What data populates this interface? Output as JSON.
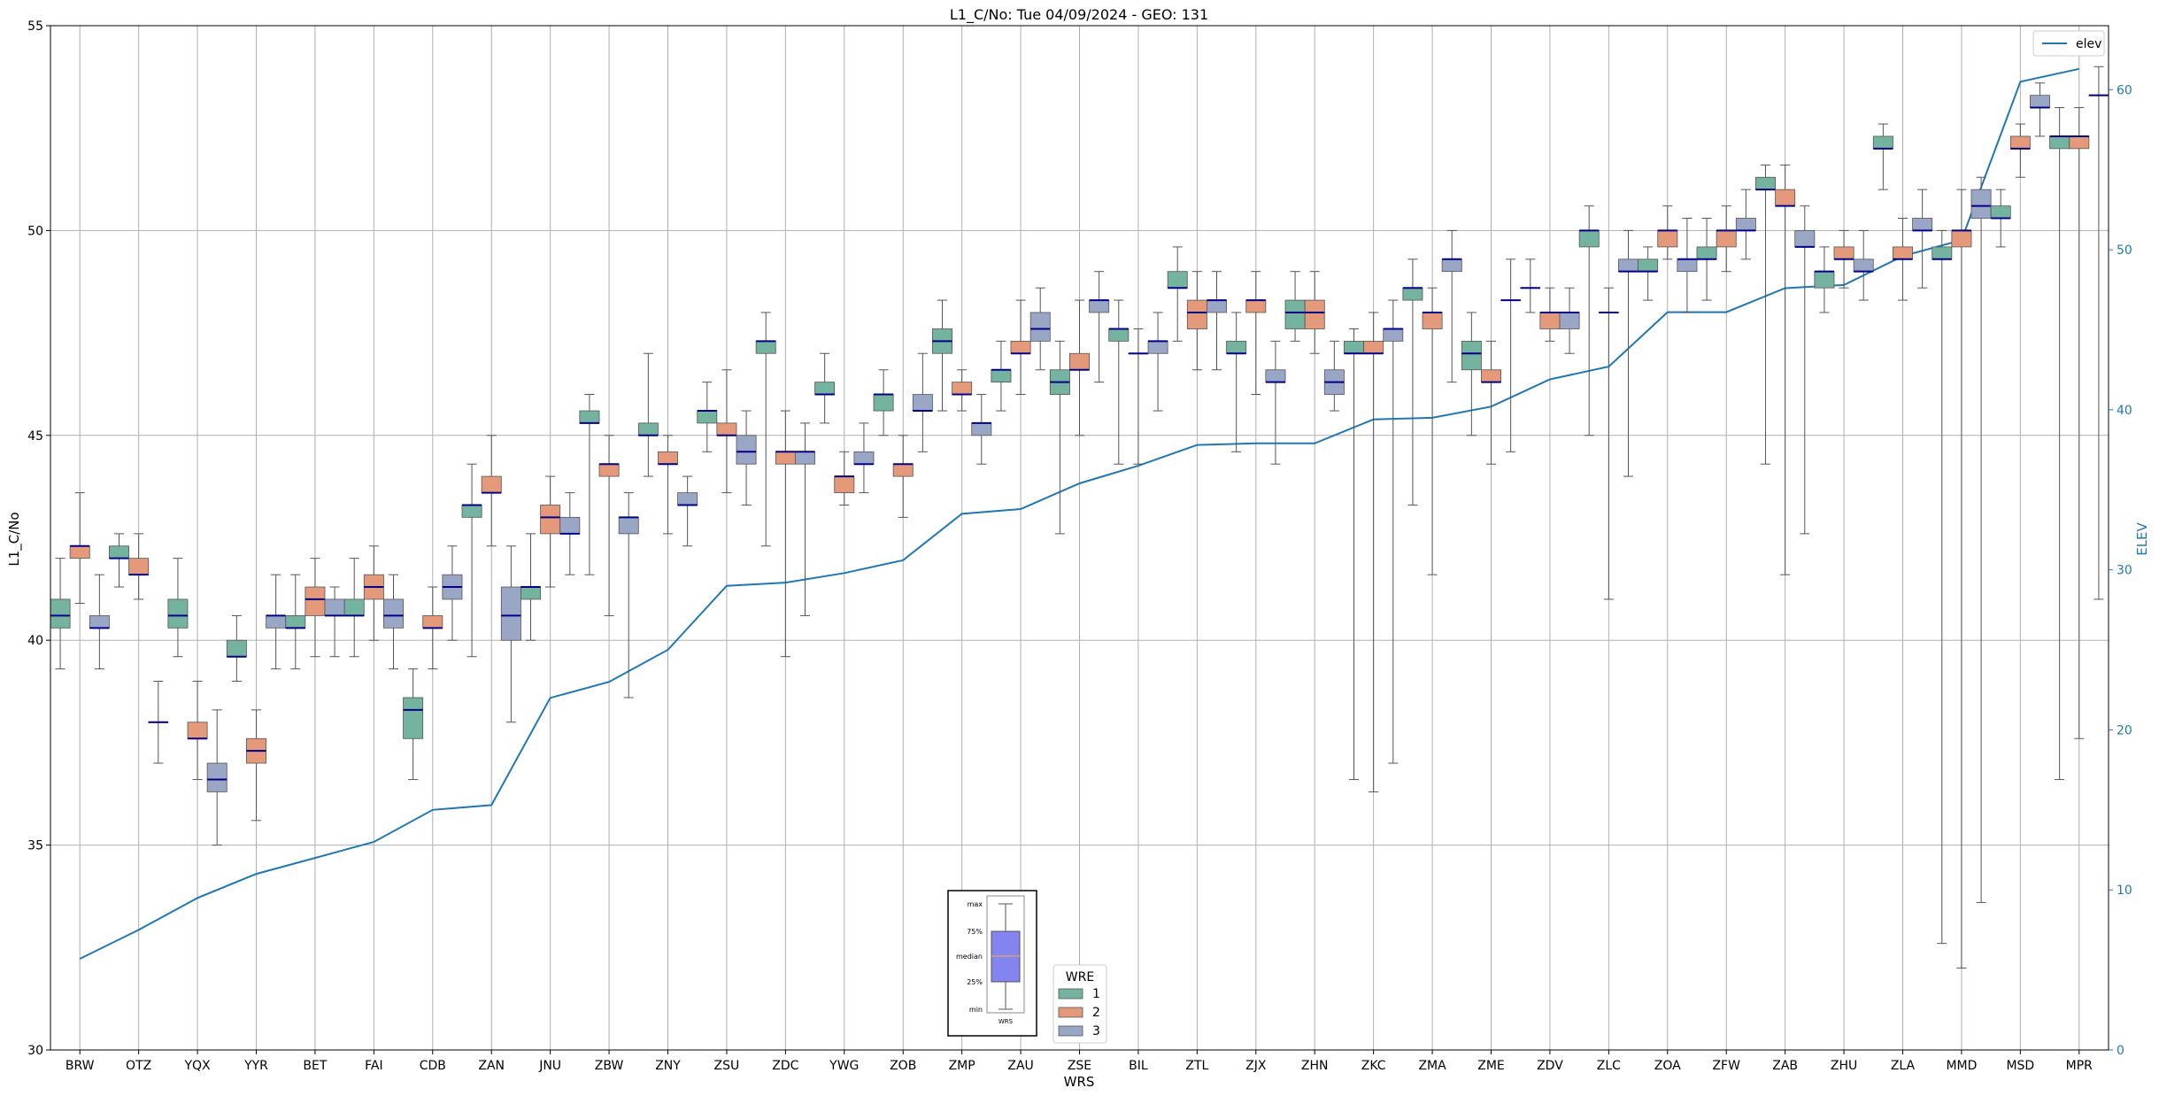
{
  "chart_data": {
    "type": "box",
    "title": "L1_C/No: Tue 04/09/2024 - GEO: 131",
    "xlabel": "WRS",
    "ylabel": "L1_C/No",
    "y2label": "ELEV",
    "ylim": [
      30,
      55
    ],
    "y2lim": [
      0,
      64
    ],
    "yticks": [
      30,
      35,
      40,
      45,
      50,
      55
    ],
    "y2ticks": [
      0,
      10,
      20,
      30,
      40,
      50,
      60
    ],
    "grid": true,
    "categories": [
      "BRW",
      "OTZ",
      "YQX",
      "YYR",
      "BET",
      "FAI",
      "CDB",
      "ZAN",
      "JNU",
      "ZBW",
      "ZNY",
      "ZSU",
      "ZDC",
      "YWG",
      "ZOB",
      "ZMP",
      "ZAU",
      "ZSE",
      "BIL",
      "ZTL",
      "ZJX",
      "ZHN",
      "ZKC",
      "ZMA",
      "ZME",
      "ZDV",
      "ZLC",
      "ZOA",
      "ZFW",
      "ZAB",
      "ZHU",
      "ZLA",
      "MMD",
      "MSD",
      "MPR"
    ],
    "wre_legend": {
      "title": "WRE",
      "items": [
        {
          "label": "1",
          "color": "#73b3a0"
        },
        {
          "label": "2",
          "color": "#e3997a"
        },
        {
          "label": "3",
          "color": "#9aa6c6"
        }
      ]
    },
    "line_legend": {
      "label": "elev",
      "color": "#1f77b4",
      "placement": "top-right"
    },
    "key_box": {
      "labels": [
        "max",
        "75%",
        "median",
        "25%",
        "min"
      ],
      "x_label": "WRS"
    },
    "elev": [
      5.7,
      7.5,
      9.5,
      11.0,
      12.0,
      13.0,
      15.0,
      15.3,
      22.0,
      23.0,
      25.0,
      29.0,
      29.2,
      29.8,
      30.6,
      33.5,
      33.8,
      35.4,
      36.5,
      37.8,
      37.9,
      37.9,
      39.4,
      39.5,
      40.2,
      41.9,
      42.7,
      46.1,
      46.1,
      47.6,
      47.8,
      49.6,
      50.6,
      60.5,
      61.3
    ],
    "boxes": [
      {
        "wrs": "BRW",
        "wre": 1,
        "min": 39.3,
        "q1": 40.3,
        "median": 40.6,
        "q3": 41.0,
        "max": 42.0
      },
      {
        "wrs": "BRW",
        "wre": 2,
        "min": 40.9,
        "q1": 42.0,
        "median": 42.3,
        "q3": 42.3,
        "max": 43.6
      },
      {
        "wrs": "BRW",
        "wre": 3,
        "min": 39.3,
        "q1": 40.3,
        "median": 40.3,
        "q3": 40.6,
        "max": 41.6
      },
      {
        "wrs": "OTZ",
        "wre": 1,
        "min": 41.3,
        "q1": 42.0,
        "median": 42.0,
        "q3": 42.3,
        "max": 42.6
      },
      {
        "wrs": "OTZ",
        "wre": 2,
        "min": 41.0,
        "q1": 41.6,
        "median": 41.6,
        "q3": 42.0,
        "max": 42.6
      },
      {
        "wrs": "OTZ",
        "wre": 3,
        "min": 37.0,
        "q1": 38.0,
        "median": 38.0,
        "q3": 38.0,
        "max": 39.0
      },
      {
        "wrs": "YQX",
        "wre": 1,
        "min": 39.6,
        "q1": 40.3,
        "median": 40.6,
        "q3": 41.0,
        "max": 42.0
      },
      {
        "wrs": "YQX",
        "wre": 2,
        "min": 36.6,
        "q1": 37.6,
        "median": 37.6,
        "q3": 38.0,
        "max": 39.0
      },
      {
        "wrs": "YQX",
        "wre": 3,
        "min": 35.0,
        "q1": 36.3,
        "median": 36.6,
        "q3": 37.0,
        "max": 38.3
      },
      {
        "wrs": "YYR",
        "wre": 1,
        "min": 39.0,
        "q1": 39.6,
        "median": 39.6,
        "q3": 40.0,
        "max": 40.6
      },
      {
        "wrs": "YYR",
        "wre": 2,
        "min": 35.6,
        "q1": 37.0,
        "median": 37.3,
        "q3": 37.6,
        "max": 38.3
      },
      {
        "wrs": "YYR",
        "wre": 3,
        "min": 39.3,
        "q1": 40.3,
        "median": 40.6,
        "q3": 40.6,
        "max": 41.6
      },
      {
        "wrs": "BET",
        "wre": 1,
        "min": 39.3,
        "q1": 40.3,
        "median": 40.3,
        "q3": 40.6,
        "max": 41.6
      },
      {
        "wrs": "BET",
        "wre": 2,
        "min": 39.6,
        "q1": 40.6,
        "median": 41.0,
        "q3": 41.3,
        "max": 42.0
      },
      {
        "wrs": "BET",
        "wre": 3,
        "min": 39.6,
        "q1": 40.6,
        "median": 40.6,
        "q3": 41.0,
        "max": 41.3
      },
      {
        "wrs": "FAI",
        "wre": 1,
        "min": 39.6,
        "q1": 40.6,
        "median": 40.6,
        "q3": 41.0,
        "max": 42.0
      },
      {
        "wrs": "FAI",
        "wre": 2,
        "min": 40.0,
        "q1": 41.0,
        "median": 41.3,
        "q3": 41.6,
        "max": 42.3
      },
      {
        "wrs": "FAI",
        "wre": 3,
        "min": 39.3,
        "q1": 40.3,
        "median": 40.6,
        "q3": 41.0,
        "max": 41.6
      },
      {
        "wrs": "CDB",
        "wre": 1,
        "min": 36.6,
        "q1": 37.6,
        "median": 38.3,
        "q3": 38.6,
        "max": 39.3
      },
      {
        "wrs": "CDB",
        "wre": 2,
        "min": 39.3,
        "q1": 40.3,
        "median": 40.3,
        "q3": 40.6,
        "max": 41.3
      },
      {
        "wrs": "CDB",
        "wre": 3,
        "min": 40.0,
        "q1": 41.0,
        "median": 41.3,
        "q3": 41.6,
        "max": 42.3
      },
      {
        "wrs": "ZAN",
        "wre": 1,
        "min": 39.6,
        "q1": 43.0,
        "median": 43.3,
        "q3": 43.3,
        "max": 44.3
      },
      {
        "wrs": "ZAN",
        "wre": 2,
        "min": 42.3,
        "q1": 43.6,
        "median": 43.6,
        "q3": 44.0,
        "max": 45.0
      },
      {
        "wrs": "ZAN",
        "wre": 3,
        "min": 38.0,
        "q1": 40.0,
        "median": 40.6,
        "q3": 41.3,
        "max": 42.3
      },
      {
        "wrs": "JNU",
        "wre": 1,
        "min": 40.0,
        "q1": 41.0,
        "median": 41.3,
        "q3": 41.3,
        "max": 42.6
      },
      {
        "wrs": "JNU",
        "wre": 2,
        "min": 41.3,
        "q1": 42.6,
        "median": 43.0,
        "q3": 43.3,
        "max": 44.0
      },
      {
        "wrs": "JNU",
        "wre": 3,
        "min": 41.6,
        "q1": 42.6,
        "median": 42.6,
        "q3": 43.0,
        "max": 43.6
      },
      {
        "wrs": "ZBW",
        "wre": 1,
        "min": 41.6,
        "q1": 45.3,
        "median": 45.3,
        "q3": 45.6,
        "max": 46.0
      },
      {
        "wrs": "ZBW",
        "wre": 2,
        "min": 40.6,
        "q1": 44.0,
        "median": 44.3,
        "q3": 44.3,
        "max": 45.0
      },
      {
        "wrs": "ZBW",
        "wre": 3,
        "min": 38.6,
        "q1": 42.6,
        "median": 43.0,
        "q3": 43.0,
        "max": 43.6
      },
      {
        "wrs": "ZNY",
        "wre": 1,
        "min": 44.0,
        "q1": 45.0,
        "median": 45.0,
        "q3": 45.3,
        "max": 47.0
      },
      {
        "wrs": "ZNY",
        "wre": 2,
        "min": 42.6,
        "q1": 44.3,
        "median": 44.3,
        "q3": 44.6,
        "max": 45.0
      },
      {
        "wrs": "ZNY",
        "wre": 3,
        "min": 42.3,
        "q1": 43.3,
        "median": 43.3,
        "q3": 43.6,
        "max": 44.0
      },
      {
        "wrs": "ZSU",
        "wre": 1,
        "min": 44.6,
        "q1": 45.3,
        "median": 45.6,
        "q3": 45.6,
        "max": 46.3
      },
      {
        "wrs": "ZSU",
        "wre": 2,
        "min": 43.6,
        "q1": 45.0,
        "median": 45.0,
        "q3": 45.3,
        "max": 46.6
      },
      {
        "wrs": "ZSU",
        "wre": 3,
        "min": 43.3,
        "q1": 44.3,
        "median": 44.6,
        "q3": 45.0,
        "max": 45.6
      },
      {
        "wrs": "ZDC",
        "wre": 1,
        "min": 42.3,
        "q1": 47.0,
        "median": 47.3,
        "q3": 47.3,
        "max": 48.0
      },
      {
        "wrs": "ZDC",
        "wre": 2,
        "min": 39.6,
        "q1": 44.3,
        "median": 44.6,
        "q3": 44.6,
        "max": 45.6
      },
      {
        "wrs": "ZDC",
        "wre": 3,
        "min": 40.6,
        "q1": 44.3,
        "median": 44.6,
        "q3": 44.6,
        "max": 45.3
      },
      {
        "wrs": "YWG",
        "wre": 1,
        "min": 45.3,
        "q1": 46.0,
        "median": 46.0,
        "q3": 46.3,
        "max": 47.0
      },
      {
        "wrs": "YWG",
        "wre": 2,
        "min": 43.3,
        "q1": 43.6,
        "median": 44.0,
        "q3": 44.0,
        "max": 44.6
      },
      {
        "wrs": "YWG",
        "wre": 3,
        "min": 43.6,
        "q1": 44.3,
        "median": 44.3,
        "q3": 44.6,
        "max": 45.3
      },
      {
        "wrs": "ZOB",
        "wre": 1,
        "min": 45.0,
        "q1": 45.6,
        "median": 46.0,
        "q3": 46.0,
        "max": 46.6
      },
      {
        "wrs": "ZOB",
        "wre": 2,
        "min": 43.0,
        "q1": 44.0,
        "median": 44.3,
        "q3": 44.3,
        "max": 45.0
      },
      {
        "wrs": "ZOB",
        "wre": 3,
        "min": 44.6,
        "q1": 45.6,
        "median": 45.6,
        "q3": 46.0,
        "max": 47.0
      },
      {
        "wrs": "ZMP",
        "wre": 1,
        "min": 45.6,
        "q1": 47.0,
        "median": 47.3,
        "q3": 47.6,
        "max": 48.3
      },
      {
        "wrs": "ZMP",
        "wre": 2,
        "min": 45.6,
        "q1": 46.0,
        "median": 46.0,
        "q3": 46.3,
        "max": 46.6
      },
      {
        "wrs": "ZMP",
        "wre": 3,
        "min": 44.3,
        "q1": 45.0,
        "median": 45.3,
        "q3": 45.3,
        "max": 46.0
      },
      {
        "wrs": "ZAU",
        "wre": 1,
        "min": 45.6,
        "q1": 46.3,
        "median": 46.6,
        "q3": 46.6,
        "max": 47.3
      },
      {
        "wrs": "ZAU",
        "wre": 2,
        "min": 46.0,
        "q1": 47.0,
        "median": 47.0,
        "q3": 47.3,
        "max": 48.3
      },
      {
        "wrs": "ZAU",
        "wre": 3,
        "min": 46.6,
        "q1": 47.3,
        "median": 47.6,
        "q3": 48.0,
        "max": 48.6
      },
      {
        "wrs": "ZSE",
        "wre": 1,
        "min": 42.6,
        "q1": 46.0,
        "median": 46.3,
        "q3": 46.6,
        "max": 47.3
      },
      {
        "wrs": "ZSE",
        "wre": 2,
        "min": 45.0,
        "q1": 46.6,
        "median": 46.6,
        "q3": 47.0,
        "max": 48.3
      },
      {
        "wrs": "ZSE",
        "wre": 3,
        "min": 46.3,
        "q1": 48.0,
        "median": 48.3,
        "q3": 48.3,
        "max": 49.0
      },
      {
        "wrs": "BIL",
        "wre": 1,
        "min": 44.3,
        "q1": 47.3,
        "median": 47.6,
        "q3": 47.6,
        "max": 48.3
      },
      {
        "wrs": "BIL",
        "wre": 2,
        "min": 44.3,
        "q1": 47.0,
        "median": 47.0,
        "q3": 47.0,
        "max": 47.6
      },
      {
        "wrs": "BIL",
        "wre": 3,
        "min": 45.6,
        "q1": 47.0,
        "median": 47.3,
        "q3": 47.3,
        "max": 48.0
      },
      {
        "wrs": "ZTL",
        "wre": 1,
        "min": 47.3,
        "q1": 48.6,
        "median": 48.6,
        "q3": 49.0,
        "max": 49.6
      },
      {
        "wrs": "ZTL",
        "wre": 2,
        "min": 46.6,
        "q1": 47.6,
        "median": 48.0,
        "q3": 48.3,
        "max": 49.0
      },
      {
        "wrs": "ZTL",
        "wre": 3,
        "min": 46.6,
        "q1": 48.0,
        "median": 48.3,
        "q3": 48.3,
        "max": 49.0
      },
      {
        "wrs": "ZJX",
        "wre": 1,
        "min": 44.6,
        "q1": 47.0,
        "median": 47.0,
        "q3": 47.3,
        "max": 48.0
      },
      {
        "wrs": "ZJX",
        "wre": 2,
        "min": 46.0,
        "q1": 48.0,
        "median": 48.3,
        "q3": 48.3,
        "max": 49.0
      },
      {
        "wrs": "ZJX",
        "wre": 3,
        "min": 44.3,
        "q1": 46.3,
        "median": 46.3,
        "q3": 46.6,
        "max": 47.3
      },
      {
        "wrs": "ZHN",
        "wre": 1,
        "min": 47.3,
        "q1": 47.6,
        "median": 48.0,
        "q3": 48.3,
        "max": 49.0
      },
      {
        "wrs": "ZHN",
        "wre": 2,
        "min": 47.0,
        "q1": 47.6,
        "median": 48.0,
        "q3": 48.3,
        "max": 49.0
      },
      {
        "wrs": "ZHN",
        "wre": 3,
        "min": 45.6,
        "q1": 46.0,
        "median": 46.3,
        "q3": 46.6,
        "max": 47.3
      },
      {
        "wrs": "ZKC",
        "wre": 1,
        "min": 36.6,
        "q1": 47.0,
        "median": 47.0,
        "q3": 47.3,
        "max": 47.6
      },
      {
        "wrs": "ZKC",
        "wre": 2,
        "min": 36.3,
        "q1": 47.0,
        "median": 47.0,
        "q3": 47.3,
        "max": 48.0
      },
      {
        "wrs": "ZKC",
        "wre": 3,
        "min": 37.0,
        "q1": 47.3,
        "median": 47.6,
        "q3": 47.6,
        "max": 48.3
      },
      {
        "wrs": "ZMA",
        "wre": 1,
        "min": 43.3,
        "q1": 48.3,
        "median": 48.6,
        "q3": 48.6,
        "max": 49.3
      },
      {
        "wrs": "ZMA",
        "wre": 2,
        "min": 41.6,
        "q1": 47.6,
        "median": 48.0,
        "q3": 48.0,
        "max": 48.6
      },
      {
        "wrs": "ZMA",
        "wre": 3,
        "min": 46.3,
        "q1": 49.0,
        "median": 49.3,
        "q3": 49.3,
        "max": 50.0
      },
      {
        "wrs": "ZME",
        "wre": 1,
        "min": 45.0,
        "q1": 46.6,
        "median": 47.0,
        "q3": 47.3,
        "max": 48.0
      },
      {
        "wrs": "ZME",
        "wre": 2,
        "min": 44.3,
        "q1": 46.3,
        "median": 46.3,
        "q3": 46.6,
        "max": 47.3
      },
      {
        "wrs": "ZME",
        "wre": 3,
        "min": 44.6,
        "q1": 48.3,
        "median": 48.3,
        "q3": 48.3,
        "max": 49.3
      },
      {
        "wrs": "ZDV",
        "wre": 1,
        "min": 48.0,
        "q1": 48.6,
        "median": 48.6,
        "q3": 48.6,
        "max": 49.3
      },
      {
        "wrs": "ZDV",
        "wre": 2,
        "min": 47.3,
        "q1": 47.6,
        "median": 48.0,
        "q3": 48.0,
        "max": 48.6
      },
      {
        "wrs": "ZDV",
        "wre": 3,
        "min": 47.0,
        "q1": 47.6,
        "median": 48.0,
        "q3": 48.0,
        "max": 48.6
      },
      {
        "wrs": "ZLC",
        "wre": 1,
        "min": 45.0,
        "q1": 49.6,
        "median": 50.0,
        "q3": 50.0,
        "max": 50.6
      },
      {
        "wrs": "ZLC",
        "wre": 2,
        "min": 41.0,
        "q1": 48.0,
        "median": 48.0,
        "q3": 48.0,
        "max": 48.6
      },
      {
        "wrs": "ZLC",
        "wre": 3,
        "min": 44.0,
        "q1": 49.0,
        "median": 49.0,
        "q3": 49.3,
        "max": 50.0
      },
      {
        "wrs": "ZOA",
        "wre": 1,
        "min": 48.3,
        "q1": 49.0,
        "median": 49.0,
        "q3": 49.3,
        "max": 49.6
      },
      {
        "wrs": "ZOA",
        "wre": 2,
        "min": 49.3,
        "q1": 49.6,
        "median": 50.0,
        "q3": 50.0,
        "max": 50.6
      },
      {
        "wrs": "ZOA",
        "wre": 3,
        "min": 48.0,
        "q1": 49.0,
        "median": 49.3,
        "q3": 49.3,
        "max": 50.3
      },
      {
        "wrs": "ZFW",
        "wre": 1,
        "min": 48.3,
        "q1": 49.3,
        "median": 49.3,
        "q3": 49.6,
        "max": 50.3
      },
      {
        "wrs": "ZFW",
        "wre": 2,
        "min": 49.0,
        "q1": 49.6,
        "median": 50.0,
        "q3": 50.0,
        "max": 50.6
      },
      {
        "wrs": "ZFW",
        "wre": 3,
        "min": 49.3,
        "q1": 50.0,
        "median": 50.0,
        "q3": 50.3,
        "max": 51.0
      },
      {
        "wrs": "ZAB",
        "wre": 1,
        "min": 44.3,
        "q1": 51.0,
        "median": 51.0,
        "q3": 51.3,
        "max": 51.6
      },
      {
        "wrs": "ZAB",
        "wre": 2,
        "min": 41.6,
        "q1": 50.6,
        "median": 50.6,
        "q3": 51.0,
        "max": 51.6
      },
      {
        "wrs": "ZAB",
        "wre": 3,
        "min": 42.6,
        "q1": 49.6,
        "median": 49.6,
        "q3": 50.0,
        "max": 50.6
      },
      {
        "wrs": "ZHU",
        "wre": 1,
        "min": 48.0,
        "q1": 48.6,
        "median": 49.0,
        "q3": 49.0,
        "max": 49.6
      },
      {
        "wrs": "ZHU",
        "wre": 2,
        "min": 48.6,
        "q1": 49.3,
        "median": 49.3,
        "q3": 49.6,
        "max": 50.0
      },
      {
        "wrs": "ZHU",
        "wre": 3,
        "min": 48.3,
        "q1": 49.0,
        "median": 49.0,
        "q3": 49.3,
        "max": 50.0
      },
      {
        "wrs": "ZLA",
        "wre": 1,
        "min": 51.0,
        "q1": 52.0,
        "median": 52.0,
        "q3": 52.3,
        "max": 52.6
      },
      {
        "wrs": "ZLA",
        "wre": 2,
        "min": 48.3,
        "q1": 49.3,
        "median": 49.3,
        "q3": 49.6,
        "max": 50.3
      },
      {
        "wrs": "ZLA",
        "wre": 3,
        "min": 48.6,
        "q1": 50.0,
        "median": 50.0,
        "q3": 50.3,
        "max": 51.0
      },
      {
        "wrs": "MMD",
        "wre": 1,
        "min": 32.6,
        "q1": 49.3,
        "median": 49.3,
        "q3": 49.6,
        "max": 50.0
      },
      {
        "wrs": "MMD",
        "wre": 2,
        "min": 32.0,
        "q1": 49.6,
        "median": 50.0,
        "q3": 50.0,
        "max": 51.0
      },
      {
        "wrs": "MMD",
        "wre": 3,
        "min": 33.6,
        "q1": 50.3,
        "median": 50.6,
        "q3": 51.0,
        "max": 51.3
      },
      {
        "wrs": "MSD",
        "wre": 1,
        "min": 49.6,
        "q1": 50.3,
        "median": 50.3,
        "q3": 50.6,
        "max": 51.0
      },
      {
        "wrs": "MSD",
        "wre": 2,
        "min": 51.3,
        "q1": 52.0,
        "median": 52.0,
        "q3": 52.3,
        "max": 52.6
      },
      {
        "wrs": "MSD",
        "wre": 3,
        "min": 52.3,
        "q1": 53.0,
        "median": 53.0,
        "q3": 53.3,
        "max": 53.6
      },
      {
        "wrs": "MPR",
        "wre": 1,
        "min": 36.6,
        "q1": 52.0,
        "median": 52.3,
        "q3": 52.3,
        "max": 53.0
      },
      {
        "wrs": "MPR",
        "wre": 2,
        "min": 37.6,
        "q1": 52.0,
        "median": 52.3,
        "q3": 52.3,
        "max": 53.0
      },
      {
        "wrs": "MPR",
        "wre": 3,
        "min": 41.0,
        "q1": 53.3,
        "median": 53.3,
        "q3": 53.3,
        "max": 54.0
      }
    ]
  }
}
